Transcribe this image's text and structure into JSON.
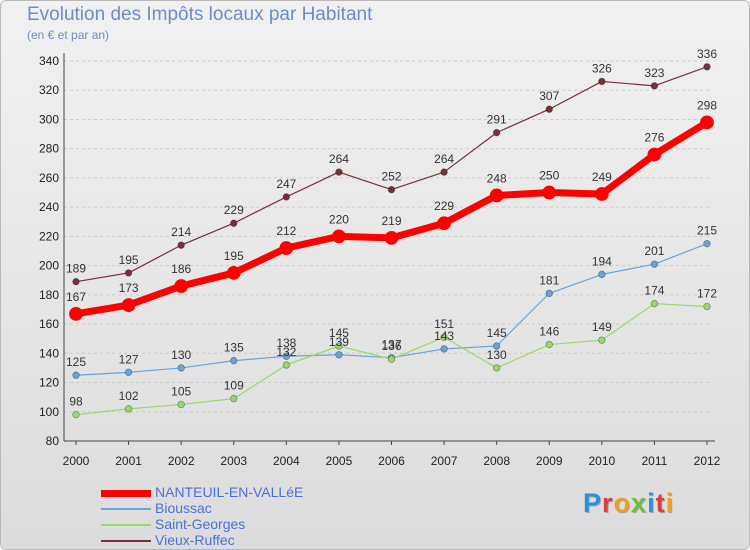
{
  "title": "Evolution des Impôts locaux par Habitant",
  "subtitle": "(en € et par an)",
  "logo_text": "Proxiti",
  "chart_data": {
    "type": "line",
    "title": "Evolution des Impôts locaux par Habitant",
    "subtitle": "(en € et par an)",
    "x": [
      "2000",
      "2001",
      "2002",
      "2003",
      "2004",
      "2005",
      "2006",
      "2007",
      "2008",
      "2009",
      "2010",
      "2011",
      "2012"
    ],
    "ylim": [
      80,
      340
    ],
    "yticks": [
      80,
      100,
      120,
      140,
      160,
      180,
      200,
      220,
      240,
      260,
      280,
      300,
      320,
      340
    ],
    "grid": "horizontal dashed",
    "legend_position": "bottom-left",
    "series": [
      {
        "name": "NANTEUIL-EN-VALLéE",
        "color": "#ff0000",
        "emphasis": true,
        "values": [
          167,
          173,
          186,
          195,
          212,
          220,
          219,
          229,
          248,
          250,
          249,
          276,
          298
        ],
        "labels": [
          "167",
          "173",
          "186",
          "195",
          "212",
          "220",
          "219",
          "229",
          "248",
          "250",
          "249",
          "276",
          "298"
        ]
      },
      {
        "name": "Bioussac",
        "color": "#6ba3d8",
        "values": [
          125,
          127,
          130,
          135,
          138,
          139,
          137,
          143,
          145,
          181,
          194,
          201,
          215
        ],
        "labels": [
          "125",
          "127",
          "130",
          "135",
          "138",
          "139",
          "137",
          "143",
          "145",
          "181",
          "194",
          "201",
          "215"
        ]
      },
      {
        "name": "Saint-Georges",
        "color": "#9ad86a",
        "values": [
          98,
          102,
          105,
          109,
          132,
          145,
          136,
          151,
          130,
          146,
          149,
          174,
          172
        ],
        "labels": [
          "98",
          "102",
          "105",
          "109",
          "132",
          "145",
          "136",
          "151",
          "130",
          "146",
          "149",
          "174",
          "172"
        ]
      },
      {
        "name": "Vieux-Ruffec",
        "color": "#7a2f3a",
        "values": [
          189,
          195,
          214,
          229,
          247,
          264,
          252,
          264,
          291,
          307,
          326,
          323,
          336
        ],
        "labels": [
          "189",
          "195",
          "214",
          "229",
          "247",
          "264",
          "252",
          "264",
          "291",
          "307",
          "326",
          "323",
          "336"
        ]
      }
    ]
  }
}
